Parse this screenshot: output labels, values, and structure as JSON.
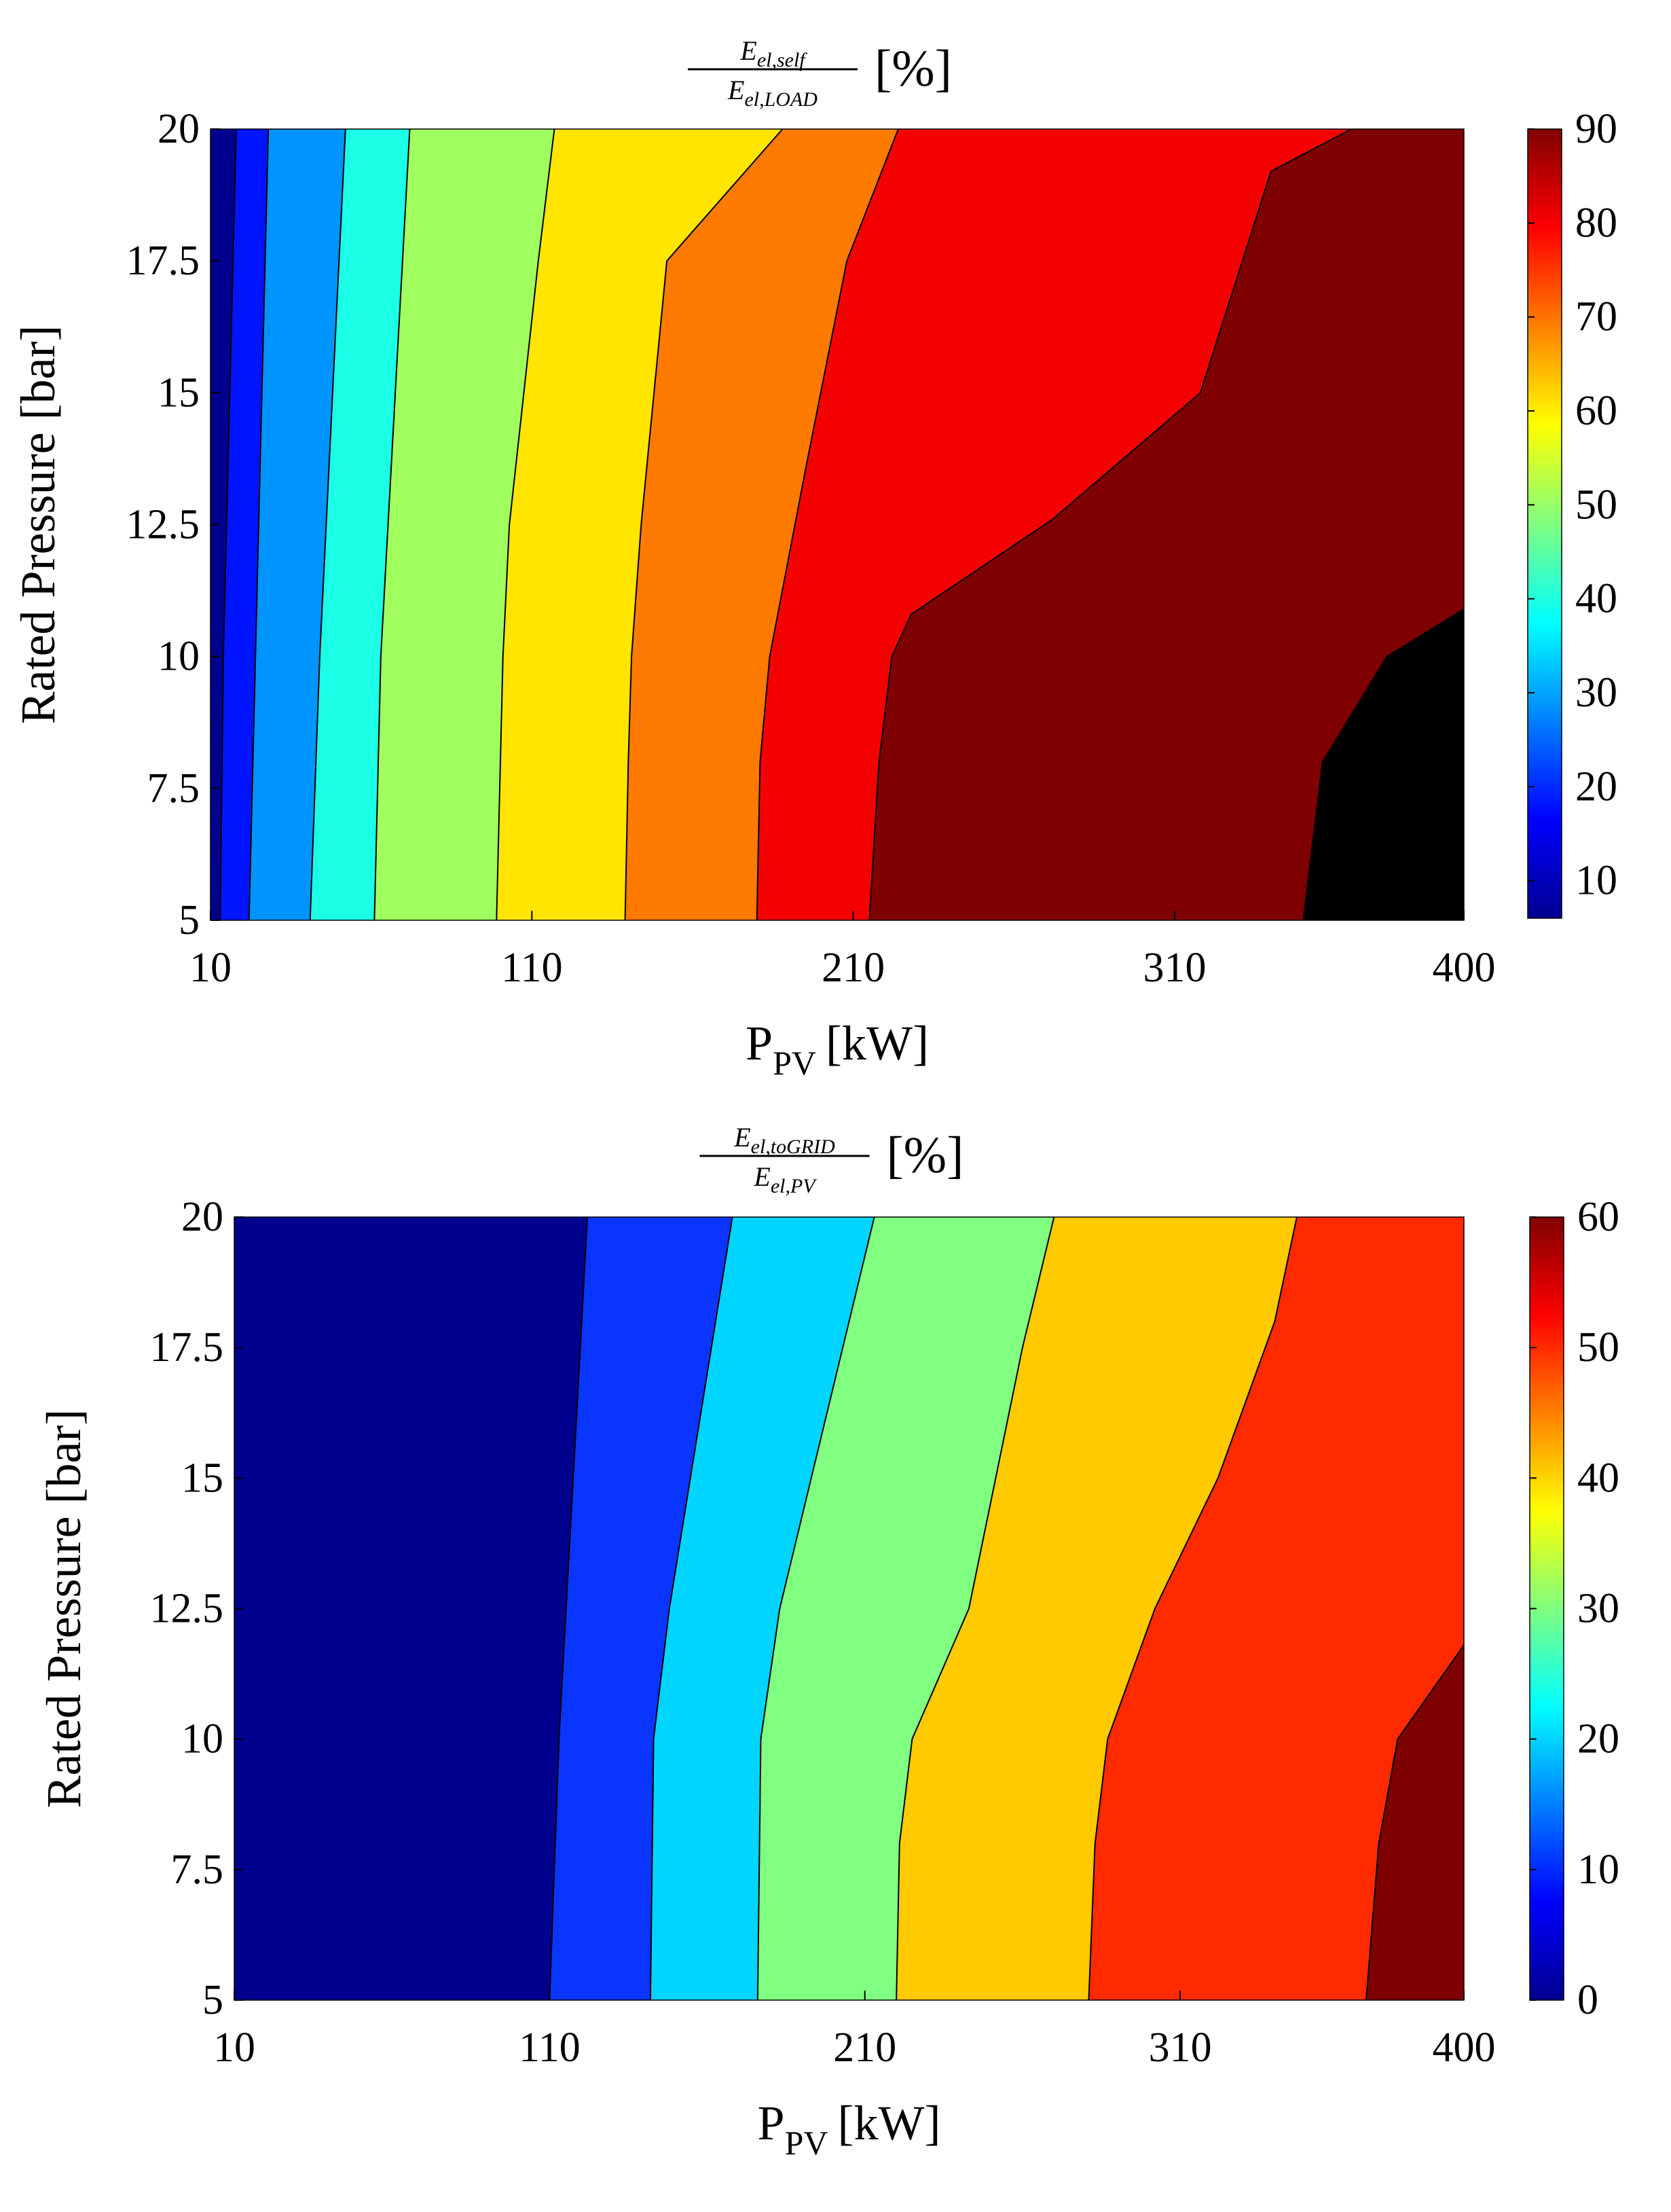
{
  "chart_data": [
    {
      "type": "contourf",
      "title": {
        "num_main": "E",
        "num_sub": "el,self",
        "den_main": "E",
        "den_sub": "el,LOAD",
        "unit": "[%]"
      },
      "xlabel": {
        "main": "P",
        "sub": "PV",
        "unit": "[kW]"
      },
      "ylabel": "Rated Pressure [bar]",
      "xlim": [
        10,
        400
      ],
      "ylim": [
        5,
        20
      ],
      "xticks": [
        10,
        110,
        210,
        310,
        400
      ],
      "xtick_labels": [
        "10",
        "110",
        "210",
        "310",
        "400"
      ],
      "yticks": [
        5,
        7.5,
        10,
        12.5,
        15,
        17.5,
        20
      ],
      "ytick_labels": [
        "5",
        "7.5",
        "10",
        "12.5",
        "15",
        "17.5",
        "20"
      ],
      "colorbar": {
        "range": [
          6,
          90
        ],
        "ticks": [
          10,
          20,
          30,
          40,
          50,
          60,
          70,
          80,
          90
        ],
        "tick_labels": [
          "10",
          "20",
          "30",
          "40",
          "50",
          "60",
          "70",
          "80",
          "90"
        ]
      },
      "contour_levels": [
        10,
        20,
        30,
        40,
        50,
        60,
        70,
        80,
        90
      ],
      "level_boundaries": [
        {
          "level": 10,
          "points": [
            [
              13,
              5
            ],
            [
              14,
              10
            ],
            [
              18,
              20
            ]
          ]
        },
        {
          "level": 20,
          "points": [
            [
              22,
              5
            ],
            [
              24,
              10
            ],
            [
              28,
              20
            ]
          ]
        },
        {
          "level": 30,
          "points": [
            [
              41,
              5
            ],
            [
              44,
              10
            ],
            [
              52,
              20
            ]
          ]
        },
        {
          "level": 40,
          "points": [
            [
              61,
              5
            ],
            [
              63,
              10
            ],
            [
              72,
              20
            ]
          ]
        },
        {
          "level": 50,
          "points": [
            [
              99,
              5
            ],
            [
              101,
              10
            ],
            [
              103,
              12.5
            ],
            [
              112,
              17.5
            ],
            [
              117,
              20
            ]
          ]
        },
        {
          "level": 60,
          "points": [
            [
              139,
              5
            ],
            [
              140,
              8
            ],
            [
              141,
              10
            ],
            [
              144,
              12.5
            ],
            [
              152,
              17.5
            ],
            [
              188,
              20
            ]
          ]
        },
        {
          "level": 70,
          "points": [
            [
              180,
              5
            ],
            [
              181,
              8
            ],
            [
              184,
              10
            ],
            [
              195,
              13.5
            ],
            [
              208,
              17.5
            ],
            [
              224,
              20
            ]
          ]
        },
        {
          "level": 80,
          "points": [
            [
              215,
              5
            ],
            [
              218,
              8
            ],
            [
              222,
              10
            ],
            [
              228,
              10.8
            ],
            [
              272,
              12.6
            ],
            [
              318,
              15
            ],
            [
              340,
              19.2
            ],
            [
              365,
              20
            ]
          ]
        },
        {
          "level": 90,
          "points": [
            [
              350,
              5
            ],
            [
              356,
              8
            ],
            [
              376,
              10
            ],
            [
              400,
              10.9
            ]
          ]
        }
      ],
      "fill_colors": [
        "#00008f",
        "#0014ff",
        "#0094ff",
        "#1affe5",
        "#a0ff5e",
        "#ffe500",
        "#ff7a00",
        "#f50000",
        "#7f0000"
      ]
    },
    {
      "type": "contourf",
      "title": {
        "num_main": "E",
        "num_sub": "el,toGRID",
        "den_main": "E",
        "den_sub": "el,PV",
        "unit": "[%]"
      },
      "xlabel": {
        "main": "P",
        "sub": "PV",
        "unit": "[kW]"
      },
      "ylabel": "Rated Pressure [bar]",
      "xlim": [
        10,
        400
      ],
      "ylim": [
        5,
        20
      ],
      "xticks": [
        10,
        110,
        210,
        310,
        400
      ],
      "xtick_labels": [
        "10",
        "110",
        "210",
        "310",
        "400"
      ],
      "yticks": [
        5,
        7.5,
        10,
        12.5,
        15,
        17.5,
        20
      ],
      "ytick_labels": [
        "5",
        "7.5",
        "10",
        "12.5",
        "15",
        "17.5",
        "20"
      ],
      "colorbar": {
        "range": [
          0,
          60
        ],
        "ticks": [
          0,
          10,
          20,
          30,
          40,
          50,
          60
        ],
        "tick_labels": [
          "0",
          "10",
          "20",
          "30",
          "40",
          "50",
          "60"
        ]
      },
      "contour_levels": [
        10,
        20,
        30,
        40,
        50,
        60
      ],
      "level_boundaries": [
        {
          "level": 10,
          "points": [
            [
              110,
              5
            ],
            [
              113,
              10
            ],
            [
              122,
              20
            ]
          ]
        },
        {
          "level": 20,
          "points": [
            [
              142,
              5
            ],
            [
              143,
              10
            ],
            [
              148,
              12.5
            ],
            [
              168,
              20
            ]
          ]
        },
        {
          "level": 30,
          "points": [
            [
              176,
              5
            ],
            [
              177,
              10
            ],
            [
              183,
              12.5
            ],
            [
              213,
              20
            ]
          ]
        },
        {
          "level": 40,
          "points": [
            [
              220,
              5
            ],
            [
              221,
              8
            ],
            [
              225,
              10
            ],
            [
              243,
              12.5
            ],
            [
              260,
              17.5
            ],
            [
              270,
              20
            ]
          ]
        },
        {
          "level": 50,
          "points": [
            [
              281,
              5
            ],
            [
              283,
              8
            ],
            [
              287,
              10
            ],
            [
              302,
              12.5
            ],
            [
              322,
              15
            ],
            [
              340,
              18
            ],
            [
              347,
              20
            ]
          ]
        },
        {
          "level": 60,
          "points": [
            [
              369,
              5
            ],
            [
              373,
              8
            ],
            [
              379,
              10
            ],
            [
              400,
              11.8
            ]
          ]
        }
      ],
      "fill_colors": [
        "#00008f",
        "#0a35ff",
        "#00d5ff",
        "#80ff80",
        "#ffca00",
        "#ff2a00",
        "#7f0000"
      ]
    }
  ]
}
